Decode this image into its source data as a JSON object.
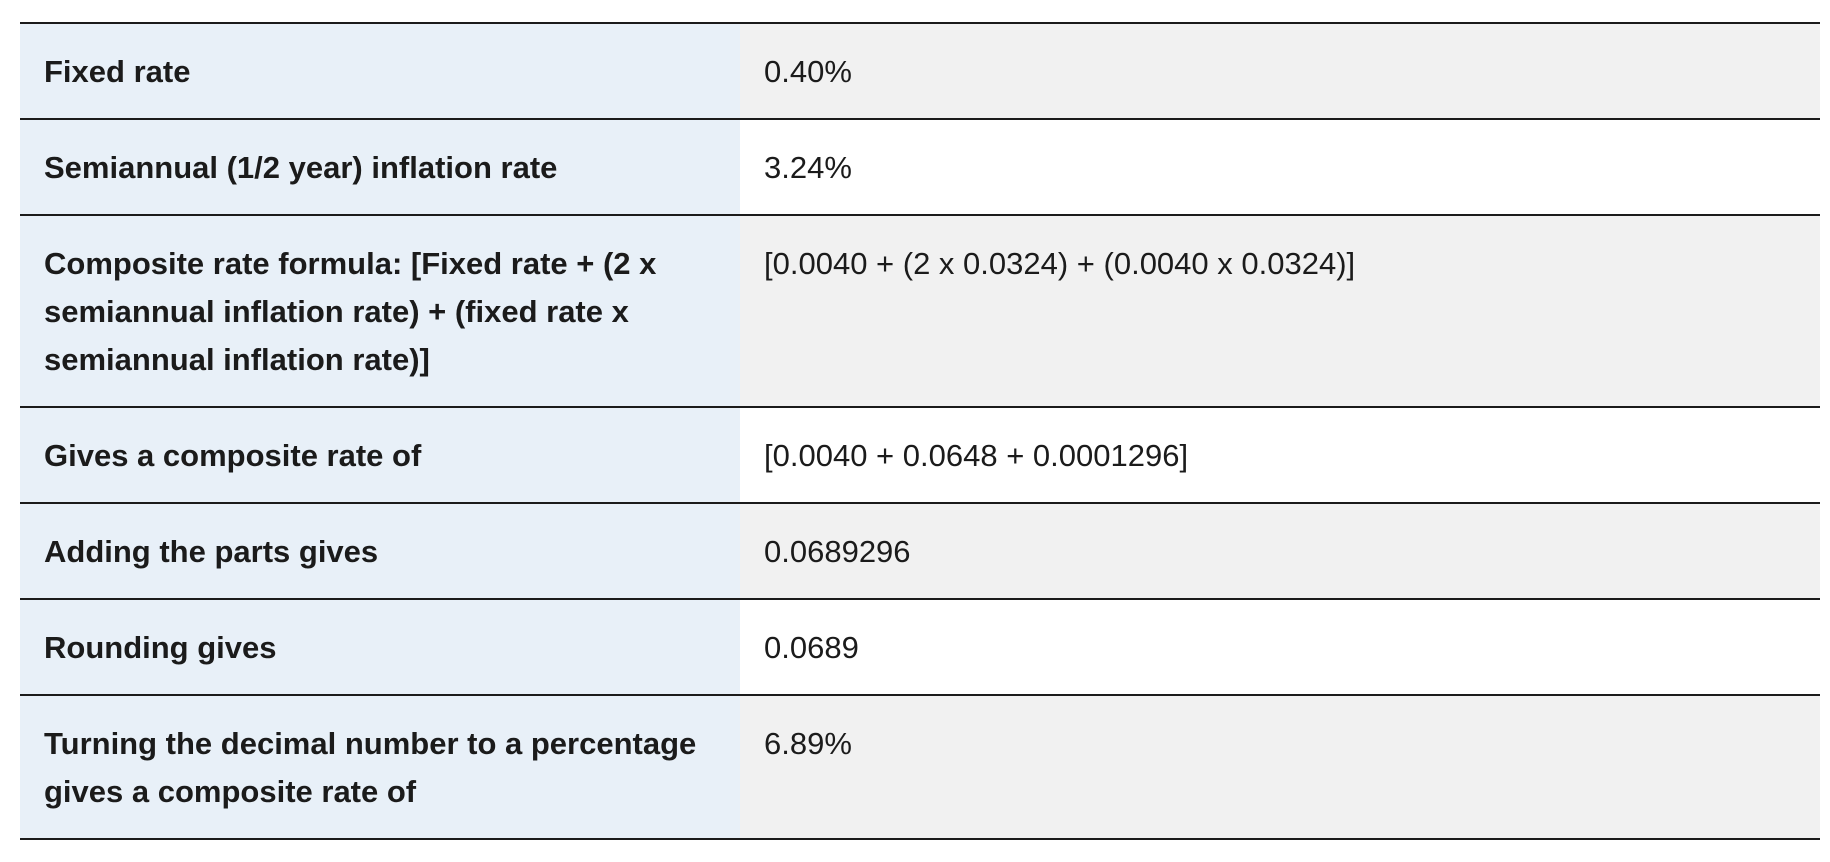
{
  "table": {
    "rows": [
      {
        "label": "Fixed rate",
        "value": "0.40%"
      },
      {
        "label": "Semiannual (1/2 year) inflation rate",
        "value": "3.24%"
      },
      {
        "label": "Composite rate formula: [Fixed rate + (2 x semiannual inflation rate) + (fixed rate x semiannual inflation rate)]",
        "value": "[0.0040 + (2 x 0.0324) + (0.0040 x 0.0324)]"
      },
      {
        "label": "Gives a composite rate of",
        "value": "[0.0040 + 0.0648 + 0.0001296]"
      },
      {
        "label": "Adding the parts gives",
        "value": "0.0689296"
      },
      {
        "label": "Rounding gives",
        "value": "0.0689"
      },
      {
        "label": "Turning the decimal number to a percentage gives a composite rate of",
        "value": "6.89%"
      }
    ]
  },
  "colors": {
    "label_background": "#e8f0f8",
    "value_background_shaded": "#f1f1f1",
    "value_background_plain": "#ffffff",
    "rule": "#1b1b1b",
    "text": "#1b1b1b"
  }
}
